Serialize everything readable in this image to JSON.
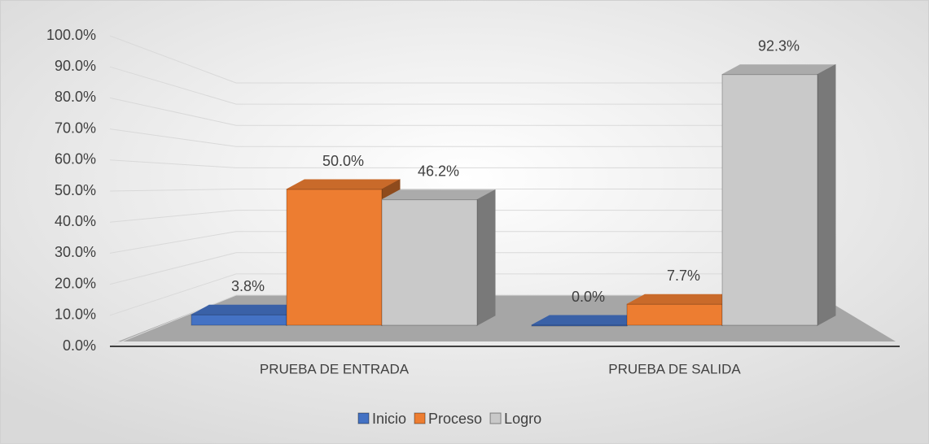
{
  "chart_data": {
    "type": "bar3d",
    "categories": [
      "PRUEBA DE ENTRADA",
      "PRUEBA DE SALIDA"
    ],
    "series": [
      {
        "name": "Inicio",
        "color": "#4472c4",
        "values": [
          3.8,
          0.0
        ],
        "value_labels": [
          "3.8%",
          "0.0%"
        ]
      },
      {
        "name": "Proceso",
        "color": "#ed7d31",
        "values": [
          50.0,
          7.7
        ],
        "value_labels": [
          "50.0%",
          "7.7%"
        ]
      },
      {
        "name": "Logro",
        "color": "#c9c9c9",
        "values": [
          46.2,
          92.3
        ],
        "value_labels": [
          "46.2%",
          "92.3%"
        ]
      }
    ],
    "ylim": [
      0,
      100
    ],
    "yticks": [
      {
        "value": 0,
        "label": "0.0%"
      },
      {
        "value": 10,
        "label": "10.0%"
      },
      {
        "value": 20,
        "label": "20.0%"
      },
      {
        "value": 30,
        "label": "30.0%"
      },
      {
        "value": 40,
        "label": "40.0%"
      },
      {
        "value": 50,
        "label": "50.0%"
      },
      {
        "value": 60,
        "label": "60.0%"
      },
      {
        "value": 70,
        "label": "70.0%"
      },
      {
        "value": 80,
        "label": "80.0%"
      },
      {
        "value": 90,
        "label": "90.0%"
      },
      {
        "value": 100,
        "label": "100.0%"
      }
    ],
    "grid": true,
    "legend": "bottom"
  }
}
